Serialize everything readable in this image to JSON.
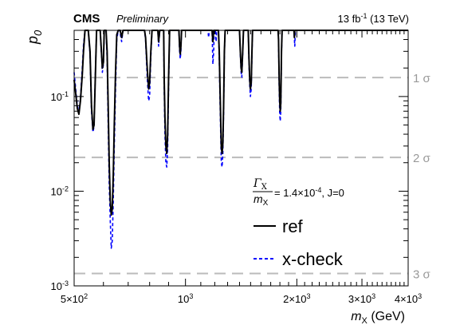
{
  "chart_data": {
    "type": "line",
    "header": {
      "experiment": "CMS",
      "status": "Preliminary",
      "lumi_prefix": "13 fb",
      "lumi_exp": "-1",
      "lumi_suffix": " (13 TeV)"
    },
    "ylabel": "p",
    "ylabel_sub": "0",
    "xlabel": "m",
    "xlabel_sub": "X",
    "xlabel_unit": " (GeV)",
    "x_scale": "log",
    "y_scale": "log",
    "xlim": [
      500,
      4000
    ],
    "ylim": [
      0.001,
      0.5
    ],
    "x_ticks": [
      {
        "value": 500,
        "mant": "5×10",
        "exp": "2"
      },
      {
        "value": 1000,
        "mant": "10",
        "exp": "3"
      },
      {
        "value": 2000,
        "mant": "2×10",
        "exp": "3"
      },
      {
        "value": 3000,
        "mant": "3×10",
        "exp": "3"
      },
      {
        "value": 4000,
        "mant": "4×10",
        "exp": "3"
      }
    ],
    "y_ticks": [
      {
        "value": 0.1,
        "mant": "10",
        "exp": "-1"
      },
      {
        "value": 0.01,
        "mant": "10",
        "exp": "-2"
      },
      {
        "value": 0.001,
        "mant": "10",
        "exp": "-3"
      }
    ],
    "sigma_lines": [
      {
        "p": 0.1587,
        "label": "1 σ"
      },
      {
        "p": 0.02275,
        "label": "2 σ"
      },
      {
        "p": 0.00135,
        "label": "3 σ"
      }
    ],
    "signal_label": {
      "num": "Γ",
      "num_sub": "X",
      "den": "m",
      "den_sub": "X",
      "value_prefix": " = 1.4×10",
      "value_exp": "-4",
      "value_suffix": ", J=0"
    },
    "series": [
      {
        "name": "ref",
        "color": "#000000",
        "style": "solid",
        "points": [
          [
            500,
            0.15
          ],
          [
            506,
            0.1
          ],
          [
            510,
            0.075
          ],
          [
            515,
            0.065
          ],
          [
            520,
            0.09
          ],
          [
            526,
            0.17
          ],
          [
            530,
            0.3
          ],
          [
            535,
            0.5
          ],
          [
            540,
            0.5
          ],
          [
            546,
            0.5
          ],
          [
            552,
            0.3
          ],
          [
            557,
            0.08
          ],
          [
            562,
            0.045
          ],
          [
            566,
            0.05
          ],
          [
            570,
            0.14
          ],
          [
            575,
            0.5
          ],
          [
            588,
            0.5
          ],
          [
            592,
            0.32
          ],
          [
            596,
            0.2
          ],
          [
            600,
            0.23
          ],
          [
            603,
            0.5
          ],
          [
            610,
            0.5
          ],
          [
            614,
            0.3
          ],
          [
            618,
            0.08
          ],
          [
            622,
            0.02
          ],
          [
            626,
            0.008
          ],
          [
            630,
            0.0056
          ],
          [
            634,
            0.0065
          ],
          [
            638,
            0.015
          ],
          [
            642,
            0.05
          ],
          [
            647,
            0.18
          ],
          [
            652,
            0.45
          ],
          [
            658,
            0.5
          ],
          [
            666,
            0.5
          ],
          [
            672,
            0.42
          ],
          [
            678,
            0.5
          ],
          [
            775,
            0.5
          ],
          [
            780,
            0.42
          ],
          [
            788,
            0.2
          ],
          [
            795,
            0.12
          ],
          [
            800,
            0.14
          ],
          [
            806,
            0.3
          ],
          [
            812,
            0.5
          ],
          [
            842,
            0.5
          ],
          [
            846,
            0.38
          ],
          [
            852,
            0.5
          ],
          [
            873,
            0.5
          ],
          [
            876,
            0.15
          ],
          [
            880,
            0.06
          ],
          [
            885,
            0.03
          ],
          [
            890,
            0.025
          ],
          [
            895,
            0.04
          ],
          [
            900,
            0.15
          ],
          [
            906,
            0.5
          ],
          [
            960,
            0.5
          ],
          [
            964,
            0.34
          ],
          [
            968,
            0.28
          ],
          [
            972,
            0.34
          ],
          [
            976,
            0.5
          ],
          [
            1180,
            0.5
          ],
          [
            1186,
            0.38
          ],
          [
            1192,
            0.5
          ],
          [
            1228,
            0.5
          ],
          [
            1234,
            0.3
          ],
          [
            1240,
            0.12
          ],
          [
            1246,
            0.05
          ],
          [
            1250,
            0.029
          ],
          [
            1256,
            0.025
          ],
          [
            1262,
            0.032
          ],
          [
            1268,
            0.08
          ],
          [
            1274,
            0.3
          ],
          [
            1280,
            0.5
          ],
          [
            1400,
            0.5
          ],
          [
            1407,
            0.3
          ],
          [
            1414,
            0.2
          ],
          [
            1420,
            0.18
          ],
          [
            1428,
            0.3
          ],
          [
            1435,
            0.5
          ],
          [
            1478,
            0.5
          ],
          [
            1485,
            0.25
          ],
          [
            1492,
            0.15
          ],
          [
            1498,
            0.12
          ],
          [
            1506,
            0.14
          ],
          [
            1512,
            0.28
          ],
          [
            1518,
            0.5
          ],
          [
            1780,
            0.5
          ],
          [
            1785,
            0.4
          ],
          [
            1792,
            0.15
          ],
          [
            1798,
            0.09
          ],
          [
            1804,
            0.07
          ],
          [
            1810,
            0.085
          ],
          [
            1818,
            0.3
          ],
          [
            1825,
            0.5
          ],
          [
            1965,
            0.5
          ],
          [
            1970,
            0.42
          ],
          [
            1975,
            0.5
          ],
          [
            4000,
            0.5
          ]
        ]
      },
      {
        "name": "x-check",
        "color": "#0000ff",
        "style": "dashed",
        "points": [
          [
            500,
            0.18
          ],
          [
            506,
            0.11
          ],
          [
            510,
            0.08
          ],
          [
            515,
            0.068
          ],
          [
            520,
            0.095
          ],
          [
            526,
            0.2
          ],
          [
            530,
            0.35
          ],
          [
            535,
            0.5
          ],
          [
            540,
            0.5
          ],
          [
            546,
            0.5
          ],
          [
            552,
            0.28
          ],
          [
            557,
            0.07
          ],
          [
            562,
            0.042
          ],
          [
            566,
            0.048
          ],
          [
            570,
            0.15
          ],
          [
            575,
            0.5
          ],
          [
            588,
            0.5
          ],
          [
            592,
            0.3
          ],
          [
            596,
            0.18
          ],
          [
            600,
            0.22
          ],
          [
            603,
            0.5
          ],
          [
            610,
            0.5
          ],
          [
            614,
            0.25
          ],
          [
            618,
            0.05
          ],
          [
            622,
            0.012
          ],
          [
            626,
            0.005
          ],
          [
            630,
            0.0025
          ],
          [
            634,
            0.003
          ],
          [
            638,
            0.008
          ],
          [
            642,
            0.03
          ],
          [
            647,
            0.12
          ],
          [
            652,
            0.4
          ],
          [
            658,
            0.55
          ],
          [
            664,
            0.5
          ],
          [
            672,
            0.38
          ],
          [
            678,
            0.55
          ],
          [
            775,
            0.5
          ],
          [
            780,
            0.4
          ],
          [
            788,
            0.16
          ],
          [
            795,
            0.09
          ],
          [
            800,
            0.1
          ],
          [
            806,
            0.26
          ],
          [
            812,
            0.5
          ],
          [
            842,
            0.5
          ],
          [
            846,
            0.34
          ],
          [
            852,
            0.5
          ],
          [
            873,
            0.5
          ],
          [
            876,
            0.12
          ],
          [
            880,
            0.04
          ],
          [
            885,
            0.02
          ],
          [
            890,
            0.018
          ],
          [
            895,
            0.028
          ],
          [
            900,
            0.12
          ],
          [
            906,
            0.5
          ],
          [
            960,
            0.5
          ],
          [
            964,
            0.3
          ],
          [
            968,
            0.25
          ],
          [
            972,
            0.3
          ],
          [
            976,
            0.5
          ],
          [
            1150,
            0.5
          ],
          [
            1155,
            0.42
          ],
          [
            1160,
            0.5
          ],
          [
            1180,
            0.5
          ],
          [
            1186,
            0.22
          ],
          [
            1192,
            0.3
          ],
          [
            1196,
            0.55
          ],
          [
            1205,
            0.5
          ],
          [
            1210,
            0.38
          ],
          [
            1215,
            0.5
          ],
          [
            1228,
            0.5
          ],
          [
            1234,
            0.25
          ],
          [
            1240,
            0.09
          ],
          [
            1246,
            0.035
          ],
          [
            1250,
            0.02
          ],
          [
            1256,
            0.018
          ],
          [
            1262,
            0.025
          ],
          [
            1268,
            0.07
          ],
          [
            1274,
            0.28
          ],
          [
            1280,
            0.55
          ],
          [
            1290,
            0.5
          ],
          [
            1400,
            0.5
          ],
          [
            1407,
            0.28
          ],
          [
            1414,
            0.18
          ],
          [
            1420,
            0.16
          ],
          [
            1428,
            0.28
          ],
          [
            1435,
            0.5
          ],
          [
            1478,
            0.5
          ],
          [
            1485,
            0.22
          ],
          [
            1492,
            0.13
          ],
          [
            1498,
            0.1
          ],
          [
            1506,
            0.12
          ],
          [
            1512,
            0.25
          ],
          [
            1518,
            0.5
          ],
          [
            1780,
            0.5
          ],
          [
            1785,
            0.38
          ],
          [
            1792,
            0.12
          ],
          [
            1798,
            0.065
          ],
          [
            1804,
            0.055
          ],
          [
            1810,
            0.07
          ],
          [
            1818,
            0.28
          ],
          [
            1825,
            0.5
          ],
          [
            1965,
            0.5
          ],
          [
            1970,
            0.4
          ],
          [
            1975,
            0.34
          ],
          [
            1982,
            0.5
          ],
          [
            4000,
            0.5
          ]
        ]
      }
    ]
  }
}
